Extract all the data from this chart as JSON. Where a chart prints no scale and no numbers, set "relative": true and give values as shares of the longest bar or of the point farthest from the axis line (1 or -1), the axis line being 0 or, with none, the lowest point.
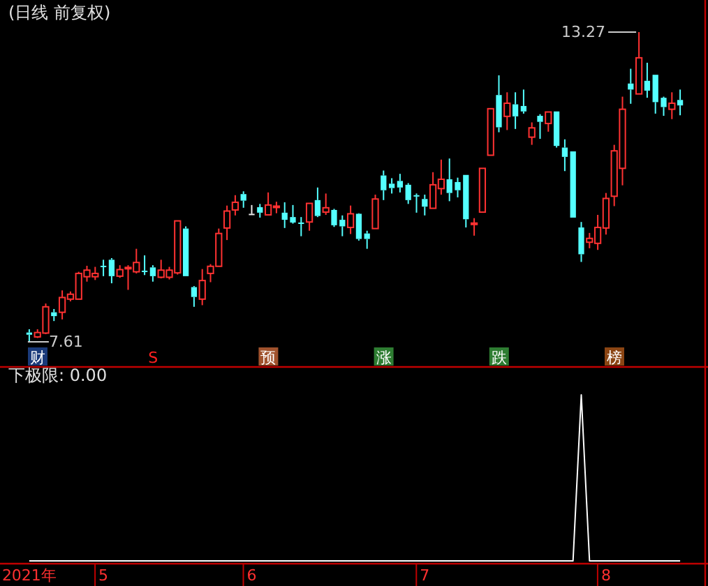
{
  "chart_data": [
    {
      "type": "candlestick",
      "title": "(日线 前复权)",
      "categories": [
        null,
        null,
        null,
        null,
        null,
        null,
        null,
        null,
        null,
        null,
        null,
        null,
        null,
        null,
        null,
        null,
        null,
        null,
        null,
        null,
        null,
        null,
        null,
        null,
        null,
        null,
        null,
        null,
        null,
        null,
        null,
        null,
        null,
        null,
        null,
        null,
        null,
        null,
        null,
        null,
        null,
        null,
        null,
        null,
        null,
        null,
        null,
        null,
        null,
        null,
        null,
        null,
        null,
        null,
        null,
        null,
        null,
        null,
        null,
        null,
        null,
        null,
        null,
        null,
        null,
        null,
        null,
        null,
        null,
        null,
        null,
        null,
        null,
        null,
        null,
        null,
        null,
        null,
        null,
        null
      ],
      "annotations": [
        "13.27",
        "7.61",
        "财",
        "S",
        "预",
        "涨",
        "跌",
        "榜"
      ],
      "ohlc": [
        [
          7.78,
          7.84,
          7.61,
          7.74
        ],
        [
          7.7,
          7.84,
          7.68,
          7.78
        ],
        [
          7.77,
          8.31,
          7.75,
          8.25
        ],
        [
          8.15,
          8.21,
          7.99,
          8.08
        ],
        [
          8.15,
          8.55,
          8.02,
          8.42
        ],
        [
          8.39,
          8.53,
          8.35,
          8.48
        ],
        [
          8.39,
          8.89,
          8.39,
          8.86
        ],
        [
          8.8,
          9.0,
          8.71,
          8.92
        ],
        [
          8.8,
          8.98,
          8.74,
          8.86
        ],
        [
          9.0,
          9.11,
          8.81,
          8.99
        ],
        [
          9.11,
          9.14,
          8.68,
          8.81
        ],
        [
          8.81,
          9.01,
          8.78,
          8.93
        ],
        [
          8.95,
          9.01,
          8.56,
          8.97
        ],
        [
          8.89,
          9.31,
          8.86,
          9.06
        ],
        [
          8.91,
          9.19,
          8.83,
          8.89
        ],
        [
          8.97,
          9.01,
          8.71,
          8.81
        ],
        [
          8.79,
          9.11,
          8.77,
          8.92
        ],
        [
          8.79,
          8.98,
          8.75,
          8.92
        ],
        [
          8.87,
          9.82,
          8.84,
          9.82
        ],
        [
          9.68,
          9.72,
          8.81,
          8.81
        ],
        [
          8.61,
          8.63,
          8.25,
          8.43
        ],
        [
          8.39,
          8.94,
          8.28,
          8.73
        ],
        [
          8.86,
          9.03,
          8.7,
          8.99
        ],
        [
          8.99,
          9.68,
          8.99,
          9.59
        ],
        [
          9.69,
          10.1,
          9.47,
          10.0
        ],
        [
          10.02,
          10.29,
          9.92,
          10.16
        ],
        [
          10.31,
          10.36,
          10.06,
          10.19
        ],
        [
          9.95,
          10.11,
          9.93,
          9.95
        ],
        [
          10.07,
          10.13,
          9.88,
          9.97
        ],
        [
          9.93,
          10.34,
          9.93,
          10.11
        ],
        [
          10.07,
          10.17,
          9.96,
          10.09
        ],
        [
          9.97,
          10.16,
          9.69,
          9.84
        ],
        [
          9.89,
          10.11,
          9.77,
          9.79
        ],
        [
          9.79,
          9.89,
          9.54,
          9.78
        ],
        [
          9.8,
          10.14,
          9.64,
          10.14
        ],
        [
          10.2,
          10.43,
          9.89,
          9.91
        ],
        [
          9.98,
          10.32,
          9.93,
          10.06
        ],
        [
          10.02,
          10.04,
          9.71,
          9.74
        ],
        [
          9.84,
          9.92,
          9.54,
          9.72
        ],
        [
          9.7,
          10.1,
          9.58,
          9.95
        ],
        [
          9.95,
          9.96,
          9.46,
          9.49
        ],
        [
          9.59,
          9.64,
          9.31,
          9.49
        ],
        [
          9.68,
          10.3,
          9.68,
          10.22
        ],
        [
          10.65,
          10.74,
          10.2,
          10.38
        ],
        [
          10.5,
          10.6,
          10.32,
          10.42
        ],
        [
          10.55,
          10.68,
          10.34,
          10.43
        ],
        [
          10.48,
          10.51,
          10.13,
          10.2
        ],
        [
          10.29,
          10.32,
          9.97,
          10.27
        ],
        [
          10.22,
          10.3,
          9.92,
          10.08
        ],
        [
          10.05,
          10.71,
          10.05,
          10.48
        ],
        [
          10.41,
          10.94,
          10.3,
          10.58
        ],
        [
          10.58,
          10.96,
          10.18,
          10.33
        ],
        [
          10.53,
          10.61,
          10.25,
          10.38
        ],
        [
          10.66,
          10.66,
          9.7,
          9.85
        ],
        [
          9.77,
          9.87,
          9.55,
          9.78
        ],
        [
          9.98,
          10.78,
          9.98,
          10.78
        ],
        [
          11.02,
          11.87,
          11.02,
          11.87
        ],
        [
          12.12,
          12.48,
          11.44,
          11.53
        ],
        [
          11.73,
          12.17,
          11.48,
          11.97
        ],
        [
          11.95,
          12.17,
          11.5,
          11.73
        ],
        [
          11.92,
          12.22,
          11.78,
          11.82
        ],
        [
          11.35,
          11.62,
          11.21,
          11.52
        ],
        [
          11.74,
          11.77,
          11.32,
          11.63
        ],
        [
          11.6,
          11.81,
          11.45,
          11.81
        ],
        [
          11.82,
          11.82,
          11.16,
          11.19
        ],
        [
          11.16,
          11.31,
          10.73,
          10.99
        ],
        [
          11.09,
          11.09,
          9.88,
          9.88
        ],
        [
          9.7,
          9.8,
          9.07,
          9.21
        ],
        [
          9.43,
          9.6,
          9.32,
          9.5
        ],
        [
          9.41,
          9.93,
          9.29,
          9.7
        ],
        [
          9.69,
          10.33,
          9.57,
          10.23
        ],
        [
          10.27,
          11.21,
          10.09,
          11.1
        ],
        [
          10.78,
          12.09,
          10.47,
          11.86
        ],
        [
          12.33,
          12.6,
          11.96,
          12.22
        ],
        [
          12.14,
          13.27,
          12.14,
          12.8
        ],
        [
          12.38,
          12.71,
          12.07,
          12.2
        ],
        [
          12.49,
          12.49,
          11.78,
          11.99
        ],
        [
          12.07,
          12.09,
          11.74,
          11.9
        ],
        [
          11.86,
          12.17,
          11.68,
          11.97
        ],
        [
          12.03,
          12.22,
          11.75,
          11.93
        ]
      ]
    },
    {
      "type": "line",
      "title": "下极限: 0.00",
      "relative": true,
      "marker": "none",
      "categories": [
        "2021年",
        null,
        null,
        null,
        null,
        null,
        null,
        null,
        null,
        "5",
        null,
        null,
        null,
        null,
        null,
        null,
        null,
        null,
        null,
        null,
        null,
        null,
        null,
        null,
        null,
        null,
        null,
        "6",
        null,
        null,
        null,
        null,
        null,
        null,
        null,
        null,
        null,
        null,
        null,
        null,
        null,
        null,
        null,
        null,
        null,
        null,
        null,
        null,
        "7",
        null,
        null,
        null,
        null,
        null,
        null,
        null,
        null,
        null,
        null,
        null,
        null,
        null,
        null,
        null,
        null,
        null,
        null,
        null,
        null,
        null,
        "8",
        null,
        null,
        null,
        null,
        null,
        null,
        null,
        null,
        null
      ],
      "series": [
        {
          "color": "#ffffff",
          "values": [
            0,
            0,
            0,
            0,
            0,
            0,
            0,
            0,
            0,
            0,
            0,
            0,
            0,
            0,
            0,
            0,
            0,
            0,
            0,
            0,
            0,
            0,
            0,
            0,
            0,
            0,
            0,
            0,
            0,
            0,
            0,
            0,
            0,
            0,
            0,
            0,
            0,
            0,
            0,
            0,
            0,
            0,
            0,
            0,
            0,
            0,
            0,
            0,
            0,
            0,
            0,
            0,
            0,
            0,
            0,
            0,
            0,
            0,
            0,
            0,
            0,
            0,
            0,
            0,
            0,
            0,
            0,
            1,
            0,
            0,
            0,
            0,
            0,
            0,
            0,
            0,
            0,
            0,
            0,
            0
          ]
        }
      ]
    }
  ]
}
